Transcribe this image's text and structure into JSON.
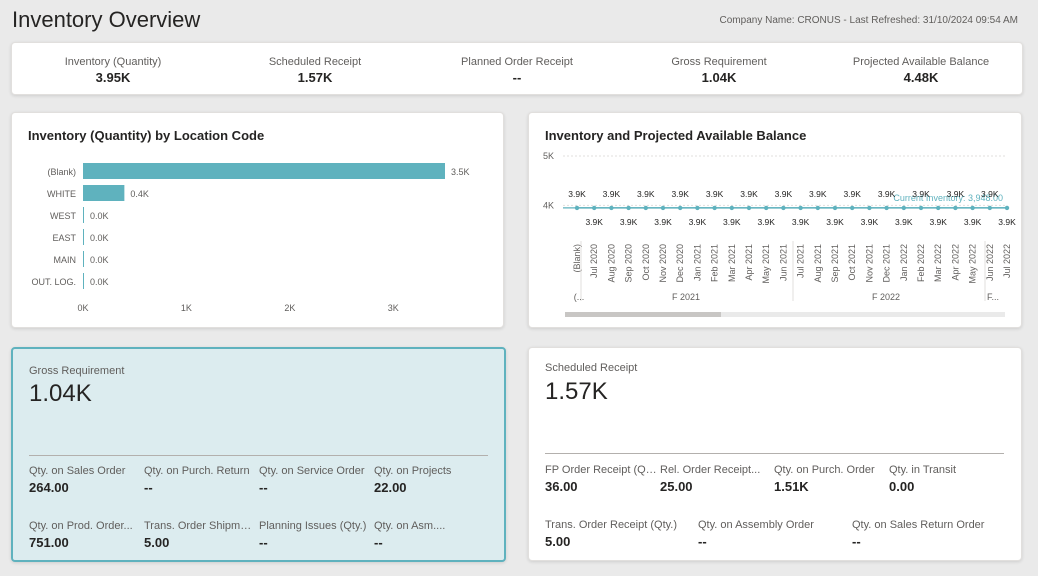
{
  "page": {
    "title": "Inventory Overview",
    "meta": "Company Name: CRONUS - Last Refreshed: 31/10/2024 09:54 AM"
  },
  "kpis": [
    {
      "label": "Inventory (Quantity)",
      "value": "3.95K"
    },
    {
      "label": "Scheduled Receipt",
      "value": "1.57K"
    },
    {
      "label": "Planned Order Receipt",
      "value": "--"
    },
    {
      "label": "Gross Requirement",
      "value": "1.04K"
    },
    {
      "label": "Projected Available Balance",
      "value": "4.48K"
    }
  ],
  "bar_chart": {
    "title": "Inventory (Quantity) by Location Code",
    "x_ticks": [
      "0K",
      "1K",
      "2K",
      "3K"
    ],
    "color": "#5fb2be"
  },
  "line_chart": {
    "title": "Inventory and Projected Available Balance",
    "y_ticks": [
      "5K",
      "4K"
    ],
    "reference_label": "Current Inventory: 3,948.00",
    "months": [
      "(Blank)",
      "Jul 2020",
      "Aug 2020",
      "Sep 2020",
      "Oct 2020",
      "Nov 2020",
      "Dec 2020",
      "Jan 2021",
      "Feb 2021",
      "Mar 2021",
      "Apr 2021",
      "May 2021",
      "Jun 2021",
      "Jul 2021",
      "Aug 2021",
      "Sep 2021",
      "Oct 2021",
      "Nov 2021",
      "Dec 2021",
      "Jan 2022",
      "Feb 2022",
      "Mar 2022",
      "Apr 2022",
      "May 2022",
      "Jun 2022",
      "Jul 2022"
    ],
    "point_labels": [
      "3.9K",
      "3.9K",
      "3.9K",
      "3.9K",
      "3.9K",
      "3.9K",
      "3.9K",
      "3.9K",
      "3.9K",
      "3.9K",
      "3.9K",
      "3.9K",
      "3.9K",
      "3.9K",
      "3.9K",
      "3.9K",
      "3.9K",
      "3.9K",
      "3.9K",
      "3.9K",
      "3.9K",
      "3.9K",
      "3.9K",
      "3.9K",
      "3.9K",
      "3.9K"
    ],
    "fiscal_labels": [
      "(...",
      "F 2021",
      "F 2022",
      "F..."
    ],
    "color": "#5fb2be"
  },
  "chart_data": [
    {
      "type": "bar",
      "title": "Inventory (Quantity) by Location Code",
      "categories": [
        "(Blank)",
        "WHITE",
        "WEST",
        "EAST",
        "MAIN",
        "OUT. LOG."
      ],
      "values": [
        3500,
        400,
        0,
        0,
        0,
        0
      ],
      "data_labels": [
        "3.5K",
        "0.4K",
        "0.0K",
        "0.0K",
        "0.0K",
        "0.0K"
      ],
      "xlim": [
        0,
        3500
      ]
    },
    {
      "type": "line",
      "title": "Inventory and Projected Available Balance",
      "x": [
        "(Blank)",
        "Jul 2020",
        "Aug 2020",
        "Sep 2020",
        "Oct 2020",
        "Nov 2020",
        "Dec 2020",
        "Jan 2021",
        "Feb 2021",
        "Mar 2021",
        "Apr 2021",
        "May 2021",
        "Jun 2021",
        "Jul 2021",
        "Aug 2021",
        "Sep 2021",
        "Oct 2021",
        "Nov 2021",
        "Dec 2021",
        "Jan 2022",
        "Feb 2022",
        "Mar 2022",
        "Apr 2022",
        "May 2022",
        "Jun 2022",
        "Jul 2022"
      ],
      "values": [
        3948,
        3948,
        3948,
        3948,
        3948,
        3948,
        3948,
        3948,
        3948,
        3948,
        3948,
        3948,
        3948,
        3948,
        3948,
        3948,
        3948,
        3948,
        3948,
        3948,
        3948,
        3948,
        3948,
        3948,
        3948,
        3948
      ],
      "reference_line": 3948,
      "ylim": [
        3500,
        5000
      ]
    }
  ],
  "gross": {
    "label": "Gross Requirement",
    "value": "1.04K",
    "cells": [
      {
        "label": "Qty. on Sales Order",
        "value": "264.00"
      },
      {
        "label": "Qty. on Purch. Return",
        "value": "--"
      },
      {
        "label": "Qty. on Service Order",
        "value": "--"
      },
      {
        "label": "Qty. on Projects",
        "value": "22.00"
      },
      {
        "label": "Qty. on Prod. Order...",
        "value": "751.00"
      },
      {
        "label": "Trans. Order Shipmen...",
        "value": "5.00"
      },
      {
        "label": "Planning Issues (Qty.)",
        "value": "--"
      },
      {
        "label": "Qty. on Asm....",
        "value": "--"
      }
    ]
  },
  "sched": {
    "label": "Scheduled Receipt",
    "value": "1.57K",
    "cells": [
      {
        "label": "FP Order Receipt (Qty.)",
        "value": "36.00"
      },
      {
        "label": "Rel. Order Receipt...",
        "value": "25.00"
      },
      {
        "label": "Qty. on Purch. Order",
        "value": "1.51K"
      },
      {
        "label": "Qty. in Transit",
        "value": "0.00"
      },
      {
        "label": "Trans. Order Receipt (Qty.)",
        "value": "5.00"
      },
      {
        "label": "Qty. on Assembly Order",
        "value": "--"
      },
      {
        "label": "Qty. on Sales Return Order",
        "value": "--"
      }
    ]
  }
}
